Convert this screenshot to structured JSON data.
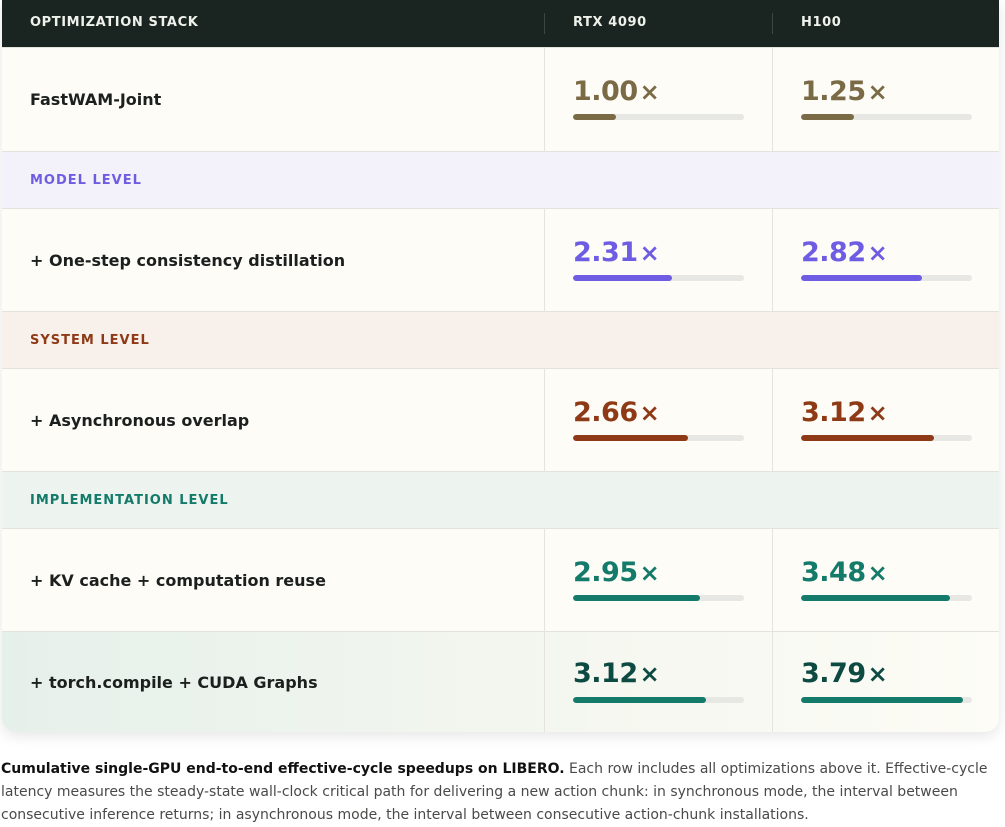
{
  "header": {
    "col1": "OPTIMIZATION STACK",
    "col2": "RTX 4090",
    "col3": "H100"
  },
  "colors": {
    "baseline": "#7a6a45",
    "model": "#6e5de3",
    "system": "#8e3a17",
    "implementation": "#147a6a",
    "implementation_final": "#0d4a42"
  },
  "rows": [
    {
      "label": "FastWAM-Joint",
      "rtx": "1.00",
      "h100": "1.25",
      "rtx_frac": 0.25,
      "h100_frac": 0.31
    },
    {
      "label": "+ One-step consistency distillation",
      "rtx": "2.31",
      "h100": "2.82",
      "rtx_frac": 0.58,
      "h100_frac": 0.71
    },
    {
      "label": "+ Asynchronous overlap",
      "rtx": "2.66",
      "h100": "3.12",
      "rtx_frac": 0.67,
      "h100_frac": 0.78
    },
    {
      "label": "+ KV cache + computation reuse",
      "rtx": "2.95",
      "h100": "3.48",
      "rtx_frac": 0.74,
      "h100_frac": 0.87
    },
    {
      "label": "+ torch.compile + CUDA Graphs",
      "rtx": "3.12",
      "h100": "3.79",
      "rtx_frac": 0.78,
      "h100_frac": 0.95
    }
  ],
  "sections": {
    "model": "MODEL LEVEL",
    "system": "SYSTEM LEVEL",
    "implementation": "IMPLEMENTATION LEVEL"
  },
  "times_symbol": "×",
  "caption": {
    "bold": "Cumulative single-GPU end-to-end effective-cycle speedups on LIBERO.",
    "text": " Each row includes all optimizations above it. Effective-cycle latency measures the steady-state wall-clock critical path for delivering a new action chunk: in synchronous mode, the interval between consecutive inference returns; in asynchronous mode, the interval between consecutive action-chunk installations."
  }
}
